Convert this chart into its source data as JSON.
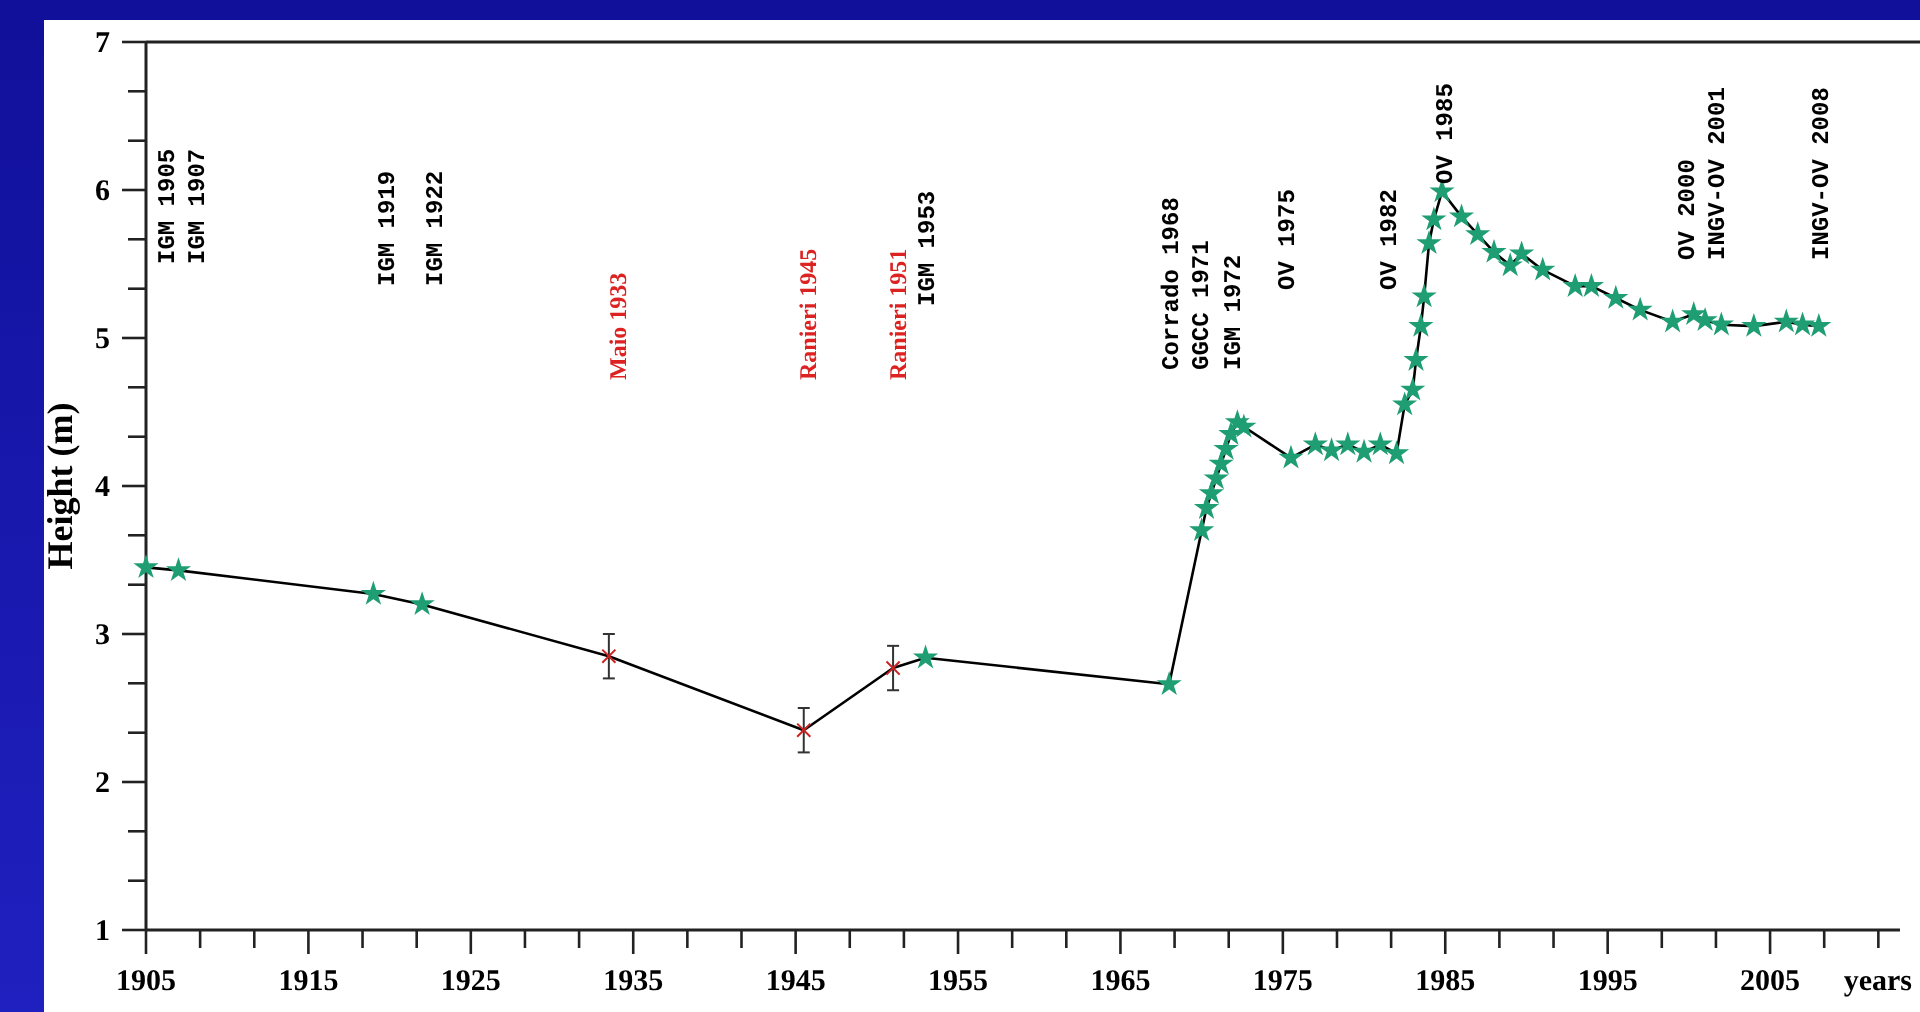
{
  "chart_data": {
    "type": "line",
    "ylabel": "Height (m)",
    "xlabel": "years",
    "xlim": [
      1905,
      2013
    ],
    "ylim": [
      1,
      7
    ],
    "xticks": [
      1905,
      {
        "value": 1908.333,
        "label": null
      },
      {
        "value": 1911.667,
        "label": null
      },
      1915,
      {
        "value": 1918.333,
        "label": null
      },
      {
        "value": 1921.667,
        "label": null
      },
      1925,
      {
        "value": 1928.333,
        "label": null
      },
      {
        "value": 1931.667,
        "label": null
      },
      1935,
      {
        "value": 1938.333,
        "label": null
      },
      {
        "value": 1941.667,
        "label": null
      },
      1945,
      {
        "value": 1948.333,
        "label": null
      },
      {
        "value": 1951.667,
        "label": null
      },
      1955,
      {
        "value": 1958.333,
        "label": null
      },
      {
        "value": 1961.667,
        "label": null
      },
      1965,
      {
        "value": 1968.333,
        "label": null
      },
      {
        "value": 1971.667,
        "label": null
      },
      1975,
      {
        "value": 1978.333,
        "label": null
      },
      {
        "value": 1981.667,
        "label": null
      },
      1985,
      {
        "value": 1988.333,
        "label": null
      },
      {
        "value": 1991.667,
        "label": null
      },
      1995,
      {
        "value": 1998.333,
        "label": null
      },
      {
        "value": 2001.667,
        "label": null
      },
      2005,
      {
        "value": 2008.333,
        "label": null
      },
      {
        "value": 2011.667,
        "label": null
      }
    ],
    "yticks": [
      1,
      {
        "value": 1.333,
        "label": null
      },
      {
        "value": 1.667,
        "label": null
      },
      2,
      {
        "value": 2.333,
        "label": null
      },
      {
        "value": 2.667,
        "label": null
      },
      3,
      {
        "value": 3.333,
        "label": null
      },
      {
        "value": 3.667,
        "label": null
      },
      4,
      {
        "value": 4.333,
        "label": null
      },
      {
        "value": 4.667,
        "label": null
      },
      5,
      {
        "value": 5.333,
        "label": null
      },
      {
        "value": 5.667,
        "label": null
      },
      6,
      {
        "value": 6.333,
        "label": null
      },
      {
        "value": 6.667,
        "label": null
      },
      7
    ],
    "grid": false,
    "series": [
      {
        "color": "#000000",
        "marker": "none",
        "line_style": "solid",
        "x": [
          1905,
          1907,
          1919,
          1922,
          1933.5,
          1945.5,
          1951,
          1953,
          1968,
          1970,
          1970.3,
          1970.6,
          1970.9,
          1971.2,
          1971.5,
          1971.8,
          1972.2,
          1972.6,
          1975.5,
          1977,
          1978,
          1979,
          1980,
          1981,
          1982,
          1982.5,
          1983,
          1983.2,
          1983.5,
          1983.7,
          1984,
          1984.3,
          1984.8,
          1986,
          1987,
          1988,
          1989,
          1989.7,
          1991,
          1993,
          1994,
          1995.5,
          1997,
          1999,
          2000.3,
          2001,
          2002,
          2004,
          2006,
          2007,
          2008
        ],
        "values": [
          3.45,
          3.43,
          3.27,
          3.2,
          2.85,
          2.35,
          2.77,
          2.84,
          2.66,
          3.7,
          3.85,
          3.95,
          4.05,
          4.15,
          4.25,
          4.35,
          4.43,
          4.4,
          4.19,
          4.28,
          4.24,
          4.28,
          4.23,
          4.28,
          4.22,
          4.55,
          4.65,
          4.85,
          5.08,
          5.28,
          5.64,
          5.8,
          5.99,
          5.82,
          5.7,
          5.58,
          5.49,
          5.57,
          5.46,
          5.35,
          5.35,
          5.27,
          5.19,
          5.11,
          5.16,
          5.12,
          5.09,
          5.08,
          5.11,
          5.09,
          5.08
        ]
      },
      {
        "type": "scatter",
        "color": "#1f9e73",
        "marker": "star",
        "x": [
          1905,
          1907,
          1919,
          1922,
          1953,
          1968,
          1970,
          1970.3,
          1970.6,
          1970.9,
          1971.2,
          1971.5,
          1971.8,
          1972.2,
          1972.6,
          1975.5,
          1977,
          1978,
          1979,
          1980,
          1981,
          1982,
          1982.5,
          1983,
          1983.2,
          1983.5,
          1983.7,
          1984,
          1984.3,
          1984.8,
          1986,
          1987,
          1988,
          1989,
          1989.7,
          1991,
          1993,
          1994,
          1995.5,
          1997,
          1999,
          2000.3,
          2001,
          2002,
          2004,
          2006,
          2007,
          2008
        ],
        "values": [
          3.45,
          3.43,
          3.27,
          3.2,
          2.84,
          2.66,
          3.7,
          3.85,
          3.95,
          4.05,
          4.15,
          4.25,
          4.35,
          4.43,
          4.4,
          4.19,
          4.28,
          4.24,
          4.28,
          4.23,
          4.28,
          4.22,
          4.55,
          4.65,
          4.85,
          5.08,
          5.28,
          5.64,
          5.8,
          5.99,
          5.82,
          5.7,
          5.58,
          5.49,
          5.57,
          5.46,
          5.35,
          5.35,
          5.27,
          5.19,
          5.11,
          5.16,
          5.12,
          5.09,
          5.08,
          5.11,
          5.09,
          5.08
        ]
      },
      {
        "type": "scatter",
        "color": "#cc2222",
        "marker": "cross",
        "x": [
          1933.5,
          1945.5,
          1951
        ],
        "values": [
          2.85,
          2.35,
          2.77
        ],
        "errors": [
          0.15,
          0.15,
          0.15
        ]
      }
    ],
    "annotations": [
      "IGM 1905",
      "IGM 1907",
      "IGM 1919",
      "IGM 1922",
      "Maio 1933",
      "Ranieri 1945",
      "Ranieri 1951",
      "IGM 1953",
      "Corrado 1968",
      "GGCC 1971",
      "IGM 1972",
      "OV 1975",
      "OV 1982",
      "OV 1985",
      "OV 2000",
      "INGV-OV 2001",
      "INGV-OV 2008"
    ]
  }
}
